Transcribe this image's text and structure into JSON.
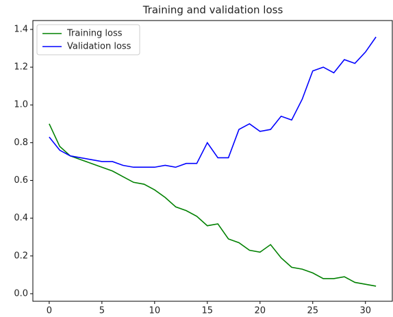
{
  "chart_data": {
    "type": "line",
    "title": "Training and validation loss",
    "x": [
      0,
      1,
      2,
      3,
      4,
      5,
      6,
      7,
      8,
      9,
      10,
      11,
      12,
      13,
      14,
      15,
      16,
      17,
      18,
      19,
      20,
      21,
      22,
      23,
      24,
      25,
      26,
      27,
      28,
      29,
      30,
      31
    ],
    "series": [
      {
        "name": "Training loss",
        "color": "#008000",
        "values": [
          0.9,
          0.78,
          0.73,
          0.71,
          0.69,
          0.67,
          0.65,
          0.62,
          0.59,
          0.58,
          0.55,
          0.51,
          0.46,
          0.44,
          0.41,
          0.36,
          0.37,
          0.29,
          0.27,
          0.23,
          0.22,
          0.26,
          0.19,
          0.14,
          0.13,
          0.11,
          0.08,
          0.08,
          0.09,
          0.06,
          0.05,
          0.04
        ]
      },
      {
        "name": "Validation loss",
        "color": "#0000ff",
        "values": [
          0.83,
          0.76,
          0.73,
          0.72,
          0.71,
          0.7,
          0.7,
          0.68,
          0.67,
          0.67,
          0.67,
          0.68,
          0.67,
          0.69,
          0.69,
          0.8,
          0.72,
          0.72,
          0.87,
          0.9,
          0.86,
          0.87,
          0.94,
          0.92,
          1.03,
          1.18,
          1.2,
          1.17,
          1.24,
          1.22,
          1.28,
          1.36
        ]
      }
    ],
    "xlim": [
      -1.55,
      32.55
    ],
    "xticks": [
      0,
      5,
      10,
      15,
      20,
      25,
      30
    ],
    "ylim": [
      -0.04,
      1.447
    ],
    "yticks": [
      {
        "value": 0,
        "label": "0.0"
      },
      0.2,
      0.4,
      0.6,
      0.8,
      {
        "value": 1,
        "label": "1.0"
      },
      1.2,
      1.4
    ],
    "legend": "upper left",
    "grid": false
  }
}
